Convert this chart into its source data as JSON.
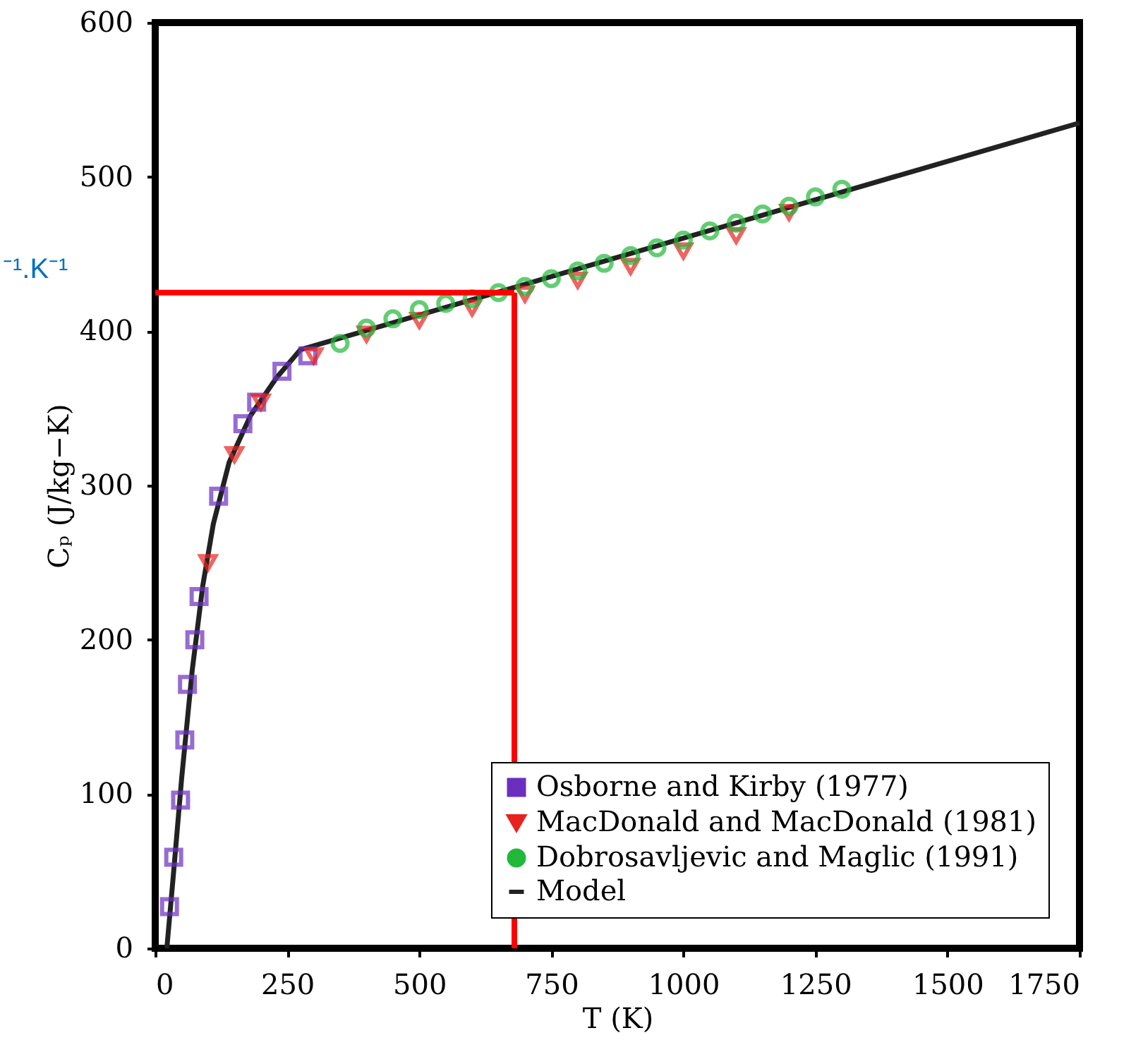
{
  "chart_data": {
    "type": "scatter",
    "xlabel": "T (K)",
    "ylabel": "Cₚ (J/kg−K)",
    "xlim": [
      0,
      1750
    ],
    "xticks": [
      0,
      250,
      500,
      750,
      1000,
      1250,
      1500,
      1750
    ],
    "ylim": [
      0,
      600
    ],
    "yticks": [
      0,
      100,
      200,
      300,
      400,
      500,
      600
    ],
    "grid": false,
    "legend": "bottom right",
    "annotations": [
      "⁻¹.K⁻¹"
    ],
    "ref_lines": [
      {
        "axis": "x",
        "value": 680,
        "label": null,
        "color": "#ff0000"
      },
      {
        "axis": "y",
        "value": 425,
        "label": null,
        "color": "#ff0000"
      }
    ],
    "series": [
      {
        "name": "Osborne and Kirby (1977)",
        "marker": "square",
        "color": "#6a2fbf",
        "x": [
          27,
          35,
          48,
          56,
          61,
          75,
          83,
          120,
          166,
          192,
          240,
          289
        ],
        "values": [
          27,
          59,
          96,
          135,
          171,
          200,
          228,
          293,
          340,
          354,
          374,
          384
        ]
      },
      {
        "name": "MacDonald and MacDonald (1981)",
        "marker": "triangle",
        "color": "#e8231f",
        "x": [
          100,
          150,
          200,
          300,
          400,
          500,
          600,
          700,
          800,
          900,
          1000,
          1100,
          1200
        ],
        "values": [
          250,
          320,
          354,
          384,
          398,
          407,
          415,
          424,
          433,
          442,
          452,
          462,
          477
        ]
      },
      {
        "name": "Dobrosavljevic and Maglic (1991)",
        "marker": "circle",
        "color": "#22b83a",
        "x": [
          350,
          400,
          450,
          500,
          550,
          600,
          650,
          700,
          750,
          800,
          850,
          900,
          950,
          1000,
          1050,
          1100,
          1150,
          1200,
          1250,
          1300
        ],
        "values": [
          392,
          402,
          408,
          414,
          418,
          421,
          425,
          429,
          434,
          439,
          444,
          449,
          454,
          459,
          465,
          470,
          476,
          481,
          487,
          492
        ]
      },
      {
        "name": "Model",
        "type": "line",
        "marker": "none",
        "color": "#222222",
        "x": [
          22,
          35,
          50,
          70,
          90,
          110,
          140,
          180,
          230,
          275,
          1750
        ],
        "values": [
          0,
          50,
          110,
          180,
          235,
          275,
          315,
          345,
          370,
          388,
          535
        ]
      }
    ]
  }
}
